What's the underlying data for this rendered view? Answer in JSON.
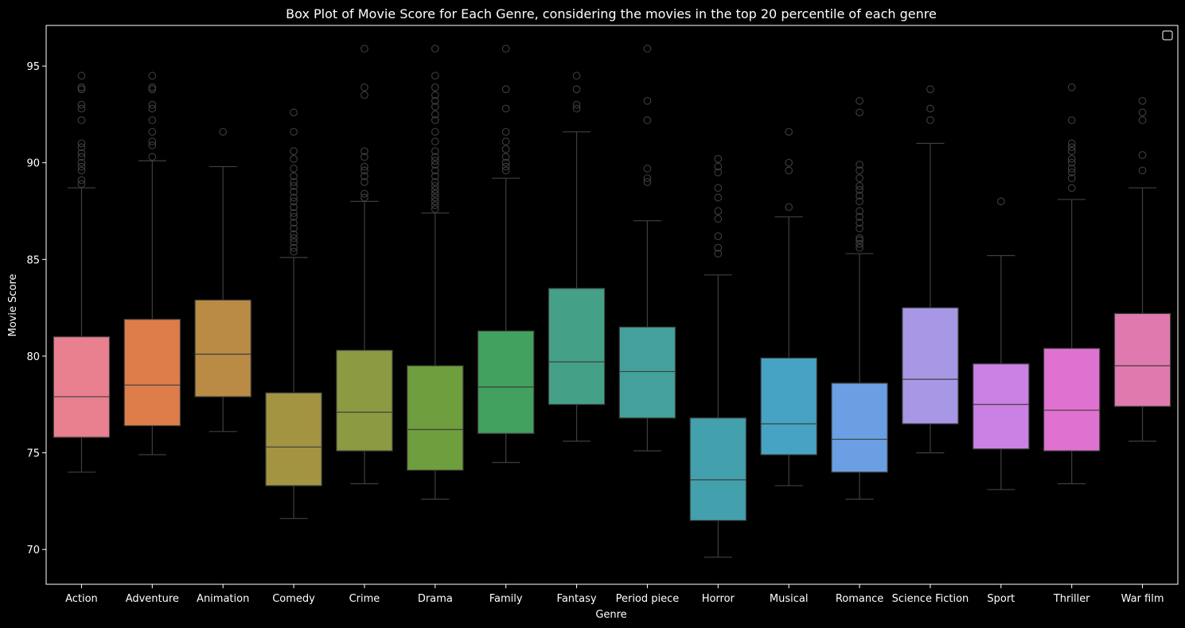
{
  "chart_data": {
    "type": "box",
    "title": "Box Plot of Movie Score for Each Genre, considering the movies in the top 20 percentile of each genre",
    "xlabel": "Genre",
    "ylabel": "Movie Score",
    "ylim": [
      68.2,
      97.1
    ],
    "yticks": [
      70,
      75,
      80,
      85,
      90,
      95
    ],
    "legend": "top-right",
    "background": "#000000",
    "line_color": "#3f3f3f",
    "categories": [
      "Action",
      "Adventure",
      "Animation",
      "Comedy",
      "Crime",
      "Drama",
      "Family",
      "Fantasy",
      "Period piece",
      "Horror",
      "Musical",
      "Romance",
      "Science Fiction",
      "Sport",
      "Thriller",
      "War film"
    ],
    "boxes": [
      {
        "category": "Action",
        "color": "#e8808f",
        "whisker_low": 74.0,
        "q1": 75.8,
        "median": 77.9,
        "q3": 81.0,
        "whisker_high": 88.7,
        "outliers": [
          88.9,
          89.1,
          89.6,
          89.8,
          90.0,
          90.3,
          90.5,
          90.8,
          91.0,
          92.2,
          92.8,
          93.0,
          93.8,
          93.9,
          94.5
        ]
      },
      {
        "category": "Adventure",
        "color": "#de7d4a",
        "whisker_low": 74.9,
        "q1": 76.4,
        "median": 78.5,
        "q3": 81.9,
        "whisker_high": 90.1,
        "outliers": [
          90.3,
          90.9,
          91.1,
          91.6,
          92.2,
          92.8,
          93.0,
          93.8,
          93.9,
          94.5
        ]
      },
      {
        "category": "Animation",
        "color": "#b98b45",
        "whisker_low": 76.1,
        "q1": 77.9,
        "median": 80.1,
        "q3": 82.9,
        "whisker_high": 89.8,
        "outliers": [
          91.6
        ]
      },
      {
        "category": "Comedy",
        "color": "#a39442",
        "whisker_low": 71.6,
        "q1": 73.3,
        "median": 75.3,
        "q3": 78.1,
        "whisker_high": 85.1,
        "outliers": [
          85.4,
          85.6,
          85.9,
          86.1,
          86.3,
          86.6,
          86.9,
          87.2,
          87.4,
          87.7,
          88.0,
          88.2,
          88.5,
          88.8,
          89.0,
          89.3,
          89.7,
          90.2,
          90.6,
          91.6,
          92.6
        ]
      },
      {
        "category": "Crime",
        "color": "#8c9a42",
        "whisker_low": 73.4,
        "q1": 75.1,
        "median": 77.1,
        "q3": 80.3,
        "whisker_high": 88.0,
        "outliers": [
          88.2,
          88.4,
          89.0,
          89.3,
          89.6,
          89.8,
          90.3,
          90.6,
          93.5,
          93.9,
          95.9
        ]
      },
      {
        "category": "Drama",
        "color": "#6e9e3d",
        "whisker_low": 72.6,
        "q1": 74.1,
        "median": 76.2,
        "q3": 79.5,
        "whisker_high": 87.4,
        "outliers": [
          87.6,
          87.8,
          88.0,
          88.2,
          88.4,
          88.6,
          88.8,
          89.0,
          89.3,
          89.6,
          89.9,
          90.1,
          90.3,
          90.6,
          91.1,
          91.6,
          92.2,
          92.5,
          92.9,
          93.2,
          93.5,
          93.9,
          94.5,
          95.9
        ]
      },
      {
        "category": "Family",
        "color": "#42a15e",
        "whisker_low": 74.5,
        "q1": 76.0,
        "median": 78.4,
        "q3": 81.3,
        "whisker_high": 89.2,
        "outliers": [
          89.6,
          89.8,
          90.0,
          90.3,
          90.7,
          91.1,
          91.6,
          92.8,
          93.8,
          95.9
        ]
      },
      {
        "category": "Fantasy",
        "color": "#45a088",
        "whisker_low": 75.6,
        "q1": 77.5,
        "median": 79.7,
        "q3": 83.5,
        "whisker_high": 91.6,
        "outliers": [
          92.8,
          93.0,
          93.8,
          94.5
        ]
      },
      {
        "category": "Period piece",
        "color": "#43a09a",
        "whisker_low": 75.1,
        "q1": 76.8,
        "median": 79.2,
        "q3": 81.5,
        "whisker_high": 87.0,
        "outliers": [
          89.0,
          89.2,
          89.7,
          92.2,
          93.2,
          95.9
        ]
      },
      {
        "category": "Horror",
        "color": "#43a0ad",
        "whisker_low": 69.6,
        "q1": 71.5,
        "median": 73.6,
        "q3": 76.8,
        "whisker_high": 84.2,
        "outliers": [
          85.3,
          85.6,
          86.2,
          87.1,
          87.5,
          88.2,
          88.7,
          89.5,
          89.8,
          90.2
        ]
      },
      {
        "category": "Musical",
        "color": "#47a3c3",
        "whisker_low": 73.3,
        "q1": 74.9,
        "median": 76.5,
        "q3": 79.9,
        "whisker_high": 87.2,
        "outliers": [
          87.7,
          89.6,
          90.0,
          91.6
        ]
      },
      {
        "category": "Romance",
        "color": "#6aa0e3",
        "whisker_low": 72.6,
        "q1": 74.0,
        "median": 75.7,
        "q3": 78.6,
        "whisker_high": 85.3,
        "outliers": [
          85.6,
          85.8,
          86.0,
          86.1,
          86.6,
          86.9,
          87.2,
          87.5,
          88.0,
          88.3,
          88.6,
          88.8,
          89.2,
          89.6,
          89.9,
          92.6,
          93.2
        ]
      },
      {
        "category": "Science Fiction",
        "color": "#a897e5",
        "whisker_low": 75.0,
        "q1": 76.5,
        "median": 78.8,
        "q3": 82.5,
        "whisker_high": 91.0,
        "outliers": [
          92.2,
          92.8,
          93.8
        ]
      },
      {
        "category": "Sport",
        "color": "#cb81e4",
        "whisker_low": 73.1,
        "q1": 75.2,
        "median": 77.5,
        "q3": 79.6,
        "whisker_high": 85.2,
        "outliers": [
          88.0
        ]
      },
      {
        "category": "Thriller",
        "color": "#df71d0",
        "whisker_low": 73.4,
        "q1": 75.1,
        "median": 77.2,
        "q3": 80.4,
        "whisker_high": 88.1,
        "outliers": [
          88.7,
          89.2,
          89.5,
          89.7,
          90.0,
          90.2,
          90.6,
          90.8,
          91.0,
          92.2,
          93.9
        ]
      },
      {
        "category": "War film",
        "color": "#e07aae",
        "whisker_low": 75.6,
        "q1": 77.4,
        "median": 79.5,
        "q3": 82.2,
        "whisker_high": 88.7,
        "outliers": [
          89.6,
          90.4,
          92.2,
          92.6,
          93.2
        ]
      }
    ]
  }
}
